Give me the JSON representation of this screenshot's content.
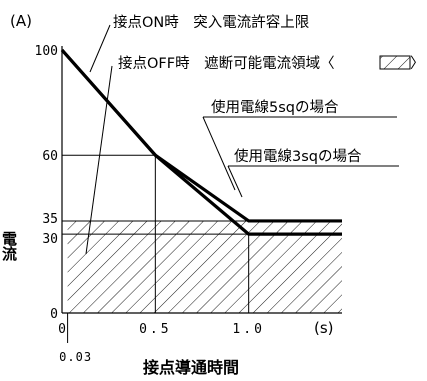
{
  "chart_data": {
    "type": "line",
    "x_unit": "(s)",
    "y_unit": "(A)",
    "ylabel": "電流",
    "xlabel": "接点導通時間",
    "xlim": [
      0,
      1.5
    ],
    "ylim": [
      0,
      100
    ],
    "x_ticks": [
      "0",
      "0.5",
      "1.0"
    ],
    "x_extra_tick": "0.03",
    "y_ticks": [
      "0",
      "30",
      "35",
      "60",
      "100"
    ],
    "series": [
      {
        "name": "使用電線5sqの場合",
        "color": "#000000",
        "points": [
          [
            0,
            100
          ],
          [
            0.5,
            60
          ],
          [
            1.0,
            35
          ],
          [
            1.5,
            35
          ]
        ]
      },
      {
        "name": "使用電線3sqの場合",
        "color": "#000000",
        "points": [
          [
            0,
            100
          ],
          [
            0.5,
            60
          ],
          [
            1.0,
            30
          ],
          [
            1.5,
            30
          ]
        ]
      }
    ],
    "annotations": {
      "on_label": "接点ON時　突入電流許容上限",
      "off_label": "接点OFF時　遮断可能電流領域〈",
      "off_label_end": "〉",
      "wire5_label": "使用電線5sqの場合",
      "wire3_label": "使用電線3sqの場合"
    },
    "shaded_region": {
      "x": [
        0.03,
        1.5
      ],
      "y": [
        0,
        35
      ],
      "fill": "hatch"
    },
    "grid": false
  }
}
